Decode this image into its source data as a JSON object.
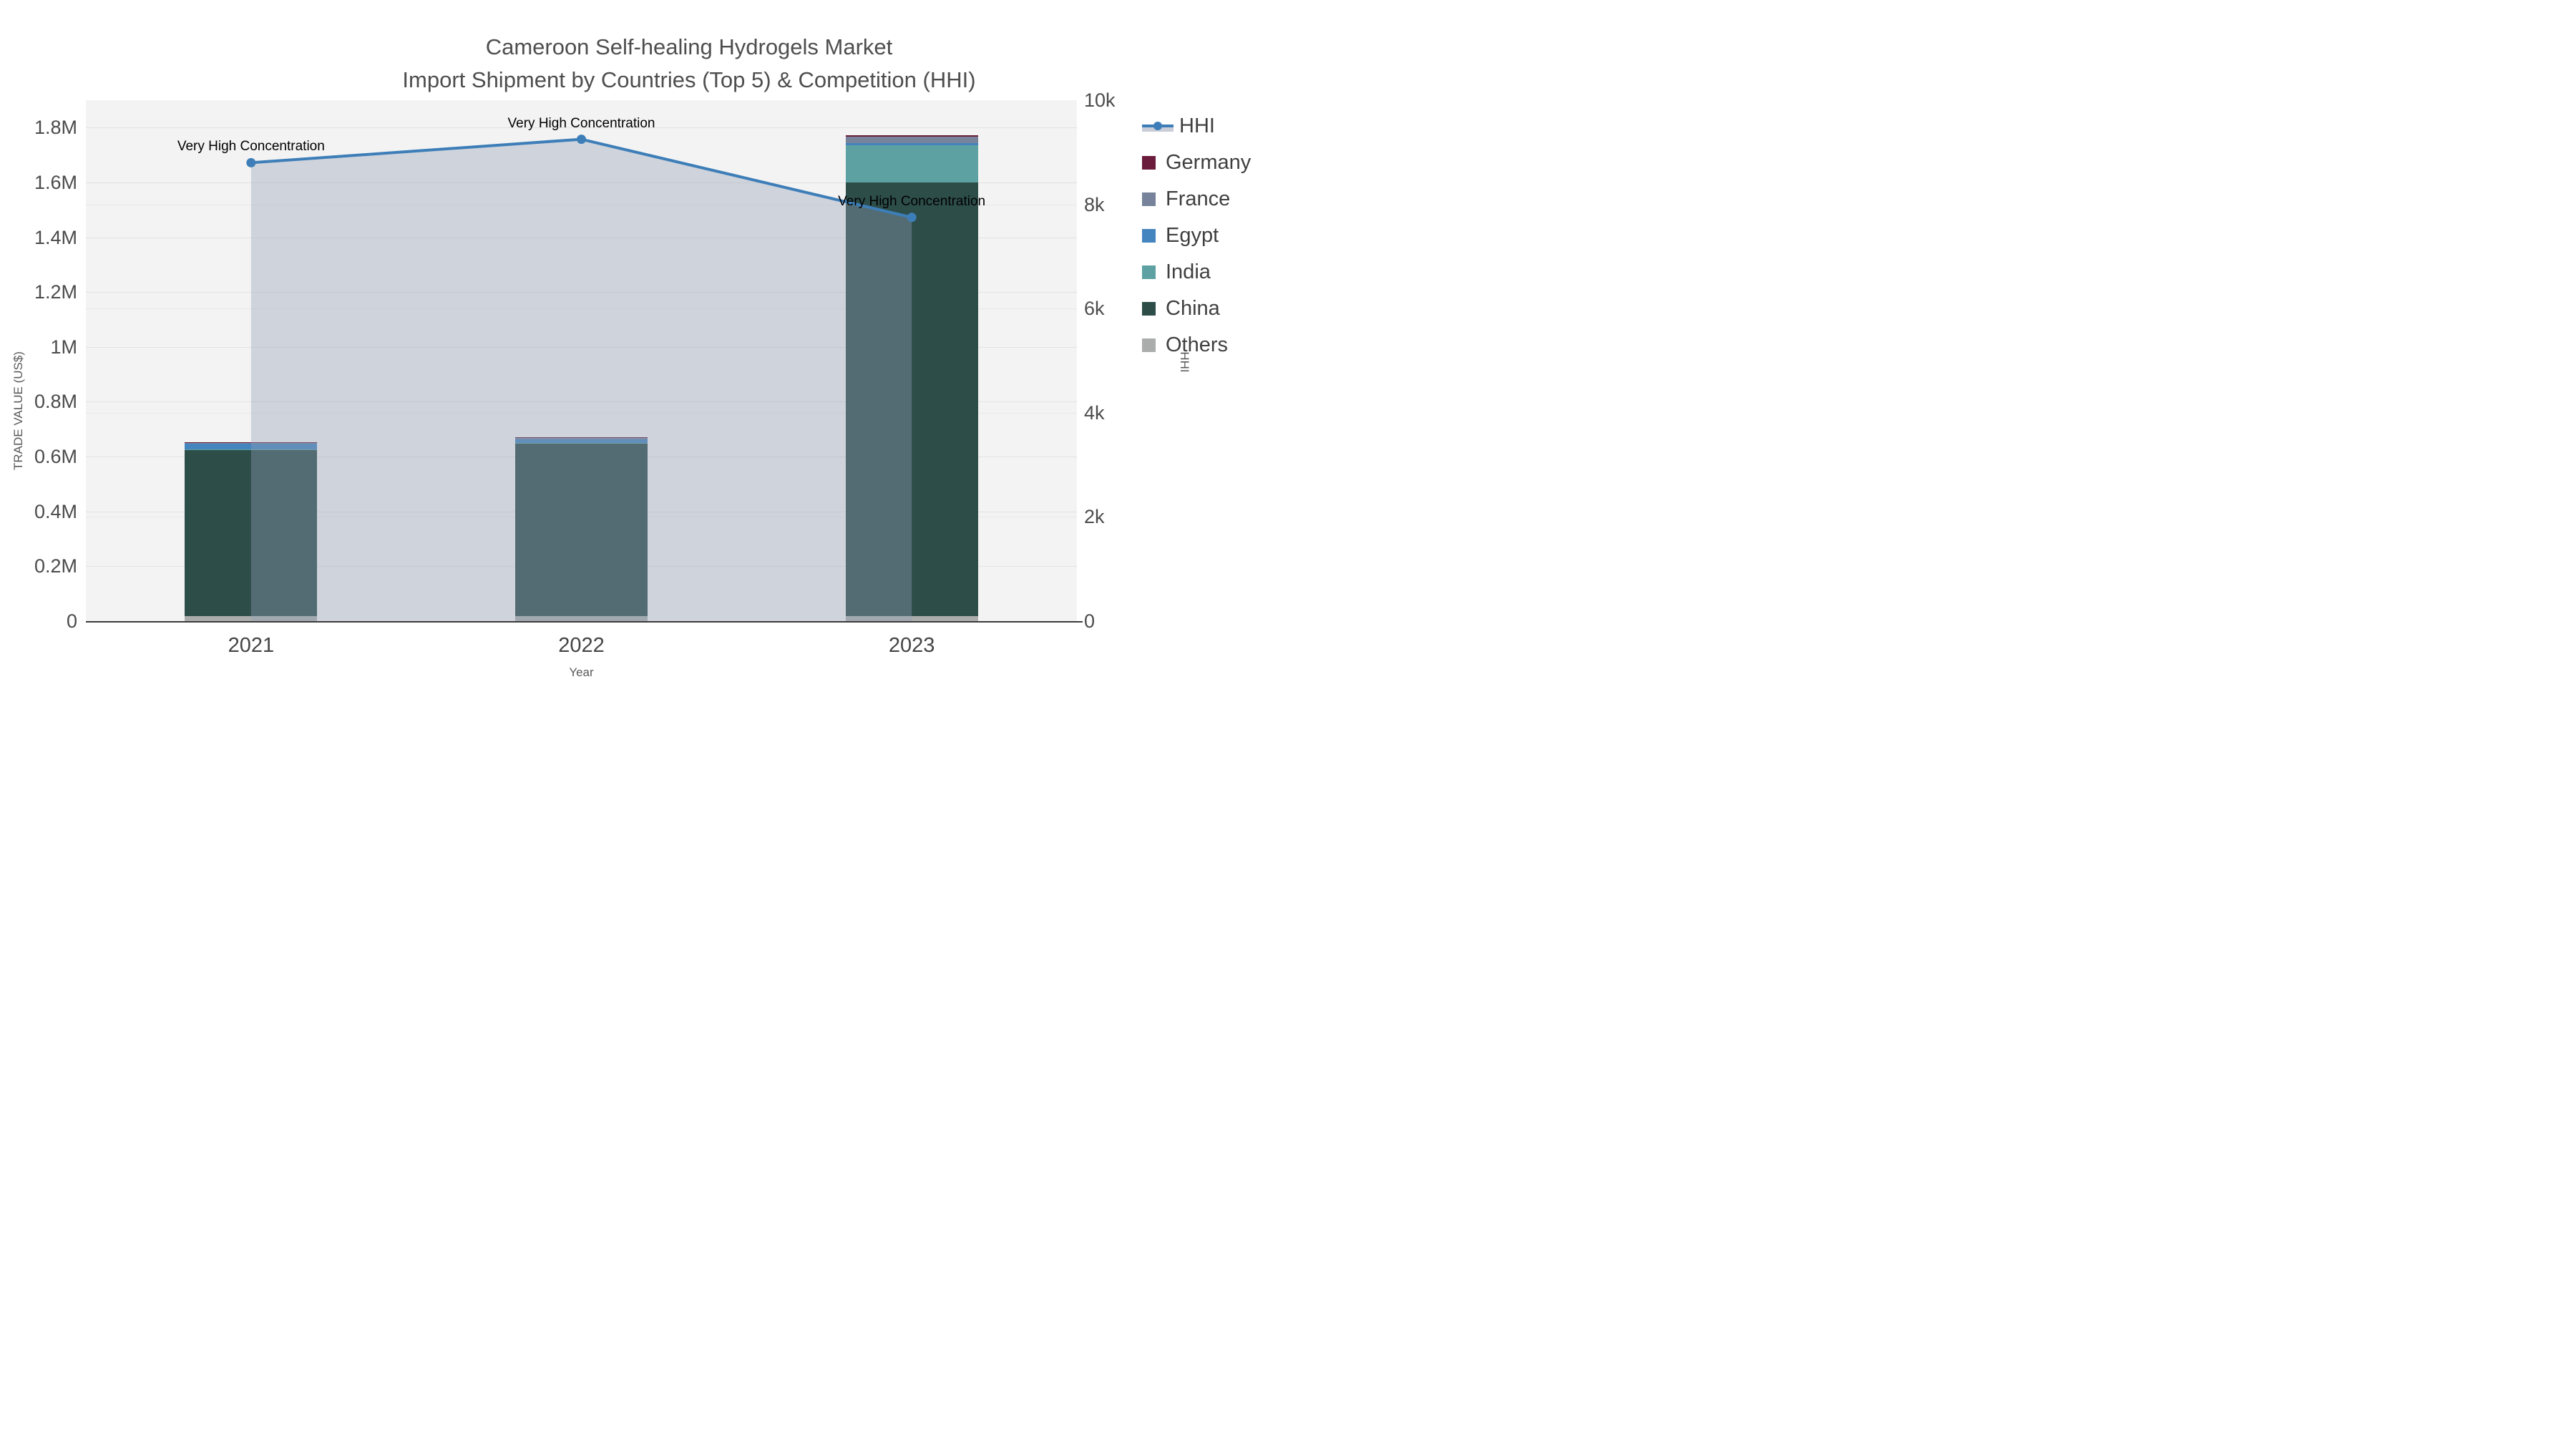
{
  "title": {
    "line1": "Cameroon Self-healing Hydrogels Market",
    "line2": "Import Shipment by Countries (Top 5) & Competition (HHI)"
  },
  "chart_data": {
    "type": "combo-stacked-bar-line",
    "categories": [
      "2021",
      "2022",
      "2023"
    ],
    "bar_series": [
      {
        "name": "Others",
        "color": "#aaadac",
        "values": [
          17000,
          17000,
          17000
        ]
      },
      {
        "name": "China",
        "color": "#2d4d49",
        "values": [
          608000,
          632000,
          1583000
        ]
      },
      {
        "name": "India",
        "color": "#5ea1a2",
        "values": [
          1500,
          1500,
          136000
        ]
      },
      {
        "name": "Egypt",
        "color": "#4484bf",
        "values": [
          20000,
          13000,
          6500
        ]
      },
      {
        "name": "France",
        "color": "#76839a",
        "values": [
          2500,
          3500,
          25000
        ]
      },
      {
        "name": "Germany",
        "color": "#6b1c3c",
        "values": [
          3000,
          5000,
          5500
        ]
      }
    ],
    "line_series": {
      "name": "HHI",
      "color": "#3d7eb8",
      "fill_color": "rgba(148,160,184,0.38)",
      "values": [
        8800,
        9250,
        7750
      ]
    },
    "left_axis": {
      "title": "TRADE VALUE (US$)",
      "max": 1900000,
      "ticks": [
        {
          "v": 0,
          "label": "0"
        },
        {
          "v": 200000,
          "label": "0.2M"
        },
        {
          "v": 400000,
          "label": "0.4M"
        },
        {
          "v": 600000,
          "label": "0.6M"
        },
        {
          "v": 800000,
          "label": "0.8M"
        },
        {
          "v": 1000000,
          "label": "1M"
        },
        {
          "v": 1200000,
          "label": "1.2M"
        },
        {
          "v": 1400000,
          "label": "1.4M"
        },
        {
          "v": 1600000,
          "label": "1.6M"
        },
        {
          "v": 1800000,
          "label": "1.8M"
        }
      ]
    },
    "right_axis": {
      "title": "HHI",
      "max": 10000,
      "ticks": [
        {
          "v": 0,
          "label": "0"
        },
        {
          "v": 2000,
          "label": "2k"
        },
        {
          "v": 4000,
          "label": "4k"
        },
        {
          "v": 6000,
          "label": "6k"
        },
        {
          "v": 8000,
          "label": "8k"
        },
        {
          "v": 10000,
          "label": "10k"
        }
      ]
    },
    "x_axis": {
      "title": "Year"
    },
    "annotations": [
      {
        "category_index": 0,
        "value": 8800,
        "text": "Very High Concentration"
      },
      {
        "category_index": 1,
        "value": 9250,
        "text": "Very High Concentration"
      },
      {
        "category_index": 2,
        "value": 7750,
        "text": "Very High Concentration"
      }
    ],
    "legend": {
      "items": [
        {
          "label": "HHI",
          "type": "line",
          "color": "#3d7eb8"
        },
        {
          "label": "Germany",
          "type": "box",
          "color": "#6b1c3c"
        },
        {
          "label": "France",
          "type": "box",
          "color": "#76839a"
        },
        {
          "label": "Egypt",
          "type": "box",
          "color": "#4484bf"
        },
        {
          "label": "India",
          "type": "box",
          "color": "#5ea1a2"
        },
        {
          "label": "China",
          "type": "box",
          "color": "#2d4d49"
        },
        {
          "label": "Others",
          "type": "box",
          "color": "#aaadac"
        }
      ]
    }
  }
}
